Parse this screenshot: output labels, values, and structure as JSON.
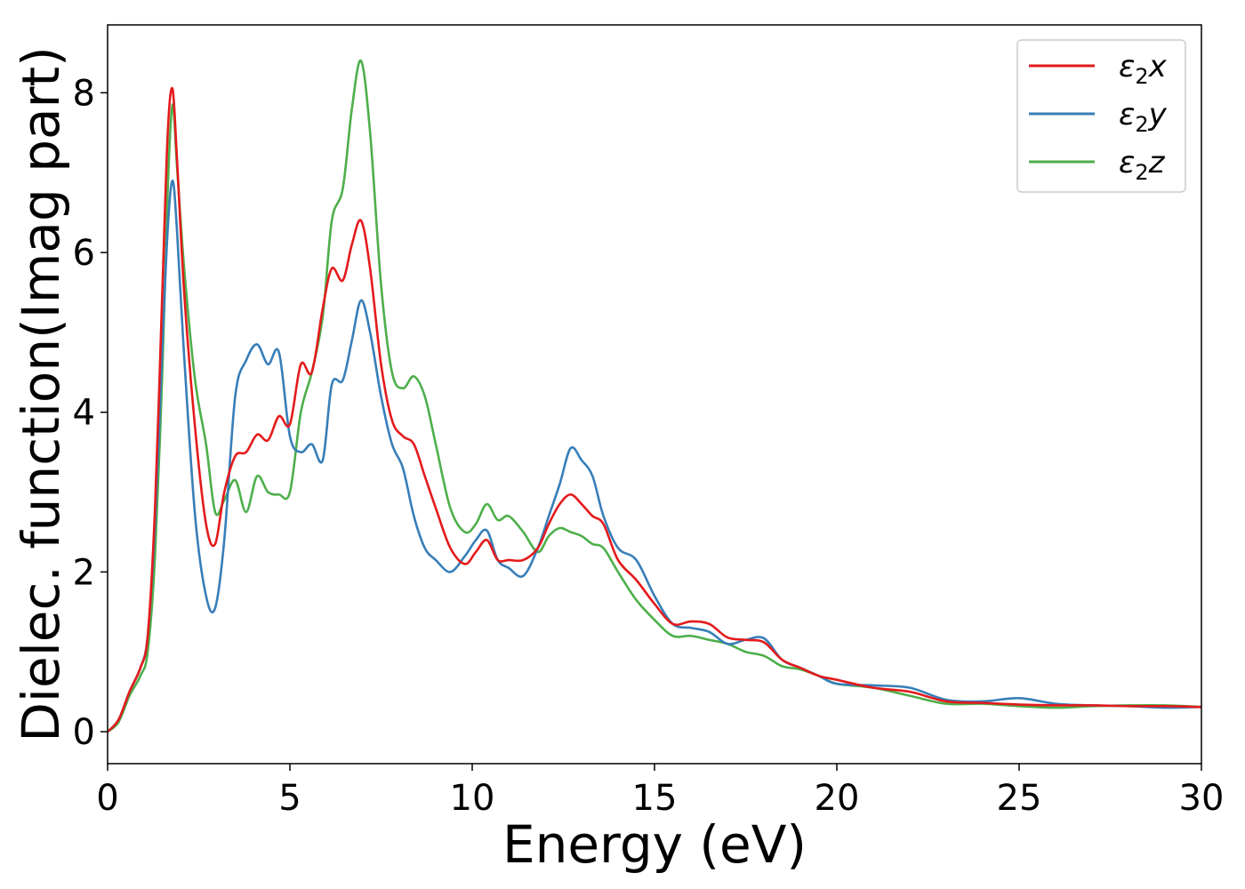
{
  "chart_data": {
    "type": "line",
    "xlabel": "Energy (eV)",
    "ylabel": "Dielec. function(Imag part)",
    "xlim": [
      0,
      30
    ],
    "ylim": [
      -0.4,
      8.85
    ],
    "xticks": [
      0,
      5,
      10,
      15,
      20,
      25,
      30
    ],
    "yticks": [
      0,
      2,
      4,
      6,
      8
    ],
    "grid": false,
    "legend_position": "top-right",
    "series": [
      {
        "name": "ε₂x",
        "legend_base": "ε",
        "legend_sub": "2",
        "legend_axis": "x",
        "color": "#e41a1c",
        "x": [
          0,
          0.3,
          0.6,
          0.9,
          1.1,
          1.3,
          1.5,
          1.65,
          1.78,
          1.9,
          2.1,
          2.4,
          2.7,
          2.95,
          3.2,
          3.5,
          3.8,
          4.1,
          4.4,
          4.7,
          5.0,
          5.3,
          5.6,
          5.9,
          6.15,
          6.45,
          6.7,
          6.95,
          7.2,
          7.5,
          7.8,
          8.1,
          8.4,
          8.7,
          9.0,
          9.4,
          9.8,
          10.1,
          10.4,
          10.7,
          11.0,
          11.4,
          11.8,
          12.1,
          12.4,
          12.7,
          13.0,
          13.3,
          13.6,
          14.0,
          14.5,
          15.0,
          15.5,
          16.0,
          16.5,
          17.0,
          17.5,
          18.0,
          18.5,
          19.0,
          19.5,
          20.0,
          21.0,
          22.0,
          23.0,
          24.0,
          25.0,
          26.0,
          27.0,
          28.0,
          29.0,
          30.0
        ],
        "y": [
          0.0,
          0.15,
          0.5,
          0.8,
          1.2,
          2.8,
          5.5,
          7.5,
          8.05,
          7.2,
          5.5,
          3.8,
          2.6,
          2.35,
          3.0,
          3.45,
          3.5,
          3.72,
          3.65,
          3.95,
          3.85,
          4.6,
          4.5,
          5.3,
          5.8,
          5.65,
          6.1,
          6.4,
          5.8,
          4.6,
          3.9,
          3.7,
          3.6,
          3.2,
          2.8,
          2.3,
          2.1,
          2.25,
          2.4,
          2.15,
          2.15,
          2.15,
          2.3,
          2.6,
          2.85,
          2.97,
          2.85,
          2.7,
          2.6,
          2.15,
          1.9,
          1.6,
          1.35,
          1.38,
          1.35,
          1.18,
          1.15,
          1.12,
          0.9,
          0.8,
          0.7,
          0.65,
          0.55,
          0.5,
          0.38,
          0.36,
          0.34,
          0.33,
          0.33,
          0.32,
          0.32,
          0.31
        ]
      },
      {
        "name": "ε₂y",
        "legend_base": "ε",
        "legend_sub": "2",
        "legend_axis": "y",
        "color": "#377eb8",
        "x": [
          0,
          0.3,
          0.6,
          0.9,
          1.1,
          1.3,
          1.5,
          1.65,
          1.78,
          1.9,
          2.1,
          2.4,
          2.7,
          2.95,
          3.2,
          3.5,
          3.8,
          4.1,
          4.4,
          4.7,
          5.0,
          5.3,
          5.6,
          5.9,
          6.15,
          6.45,
          6.7,
          6.95,
          7.2,
          7.5,
          7.8,
          8.1,
          8.4,
          8.7,
          9.0,
          9.4,
          9.8,
          10.1,
          10.4,
          10.7,
          11.0,
          11.4,
          11.8,
          12.1,
          12.4,
          12.7,
          13.0,
          13.3,
          13.6,
          14.0,
          14.5,
          15.0,
          15.5,
          16.0,
          16.5,
          17.0,
          17.5,
          18.0,
          18.5,
          19.0,
          19.5,
          20.0,
          21.0,
          22.0,
          23.0,
          24.0,
          25.0,
          26.0,
          27.0,
          28.0,
          29.0,
          30.0
        ],
        "y": [
          0.0,
          0.15,
          0.5,
          0.8,
          1.2,
          2.6,
          4.8,
          6.3,
          6.9,
          6.3,
          4.7,
          2.7,
          1.7,
          1.55,
          2.4,
          4.2,
          4.65,
          4.85,
          4.6,
          4.75,
          3.7,
          3.5,
          3.6,
          3.4,
          4.35,
          4.4,
          4.9,
          5.4,
          5.0,
          4.2,
          3.6,
          3.3,
          2.7,
          2.3,
          2.15,
          2.0,
          2.2,
          2.4,
          2.52,
          2.15,
          2.05,
          1.95,
          2.3,
          2.7,
          3.1,
          3.55,
          3.4,
          3.2,
          2.7,
          2.3,
          2.15,
          1.7,
          1.35,
          1.3,
          1.25,
          1.1,
          1.15,
          1.17,
          0.9,
          0.8,
          0.7,
          0.6,
          0.58,
          0.55,
          0.4,
          0.38,
          0.42,
          0.35,
          0.33,
          0.32,
          0.3,
          0.31
        ]
      },
      {
        "name": "ε₂z",
        "legend_base": "ε",
        "legend_sub": "2",
        "legend_axis": "z",
        "color": "#4daf4a",
        "x": [
          0,
          0.3,
          0.6,
          0.9,
          1.1,
          1.3,
          1.5,
          1.65,
          1.78,
          1.9,
          2.1,
          2.4,
          2.7,
          2.95,
          3.2,
          3.5,
          3.8,
          4.1,
          4.4,
          4.7,
          5.0,
          5.3,
          5.6,
          5.9,
          6.15,
          6.45,
          6.7,
          6.95,
          7.2,
          7.5,
          7.8,
          8.1,
          8.4,
          8.7,
          9.0,
          9.4,
          9.8,
          10.1,
          10.4,
          10.7,
          11.0,
          11.4,
          11.8,
          12.1,
          12.4,
          12.7,
          13.0,
          13.3,
          13.6,
          14.0,
          14.5,
          15.0,
          15.5,
          16.0,
          16.5,
          17.0,
          17.5,
          18.0,
          18.5,
          19.0,
          19.5,
          20.0,
          21.0,
          22.0,
          23.0,
          24.0,
          25.0,
          26.0,
          27.0,
          28.0,
          29.0,
          30.0
        ],
        "y": [
          0.0,
          0.12,
          0.45,
          0.7,
          1.0,
          2.2,
          4.5,
          6.8,
          7.85,
          7.1,
          5.8,
          4.4,
          3.6,
          2.75,
          2.9,
          3.15,
          2.75,
          3.2,
          3.0,
          2.97,
          3.0,
          4.0,
          4.5,
          5.2,
          6.4,
          6.8,
          7.8,
          8.4,
          7.5,
          5.6,
          4.5,
          4.3,
          4.45,
          4.2,
          3.6,
          2.8,
          2.5,
          2.6,
          2.85,
          2.65,
          2.7,
          2.5,
          2.25,
          2.45,
          2.55,
          2.5,
          2.45,
          2.35,
          2.3,
          2.0,
          1.65,
          1.4,
          1.2,
          1.2,
          1.15,
          1.1,
          1.0,
          0.95,
          0.82,
          0.78,
          0.7,
          0.6,
          0.55,
          0.45,
          0.35,
          0.35,
          0.32,
          0.3,
          0.32,
          0.33,
          0.33,
          0.31
        ]
      }
    ]
  }
}
